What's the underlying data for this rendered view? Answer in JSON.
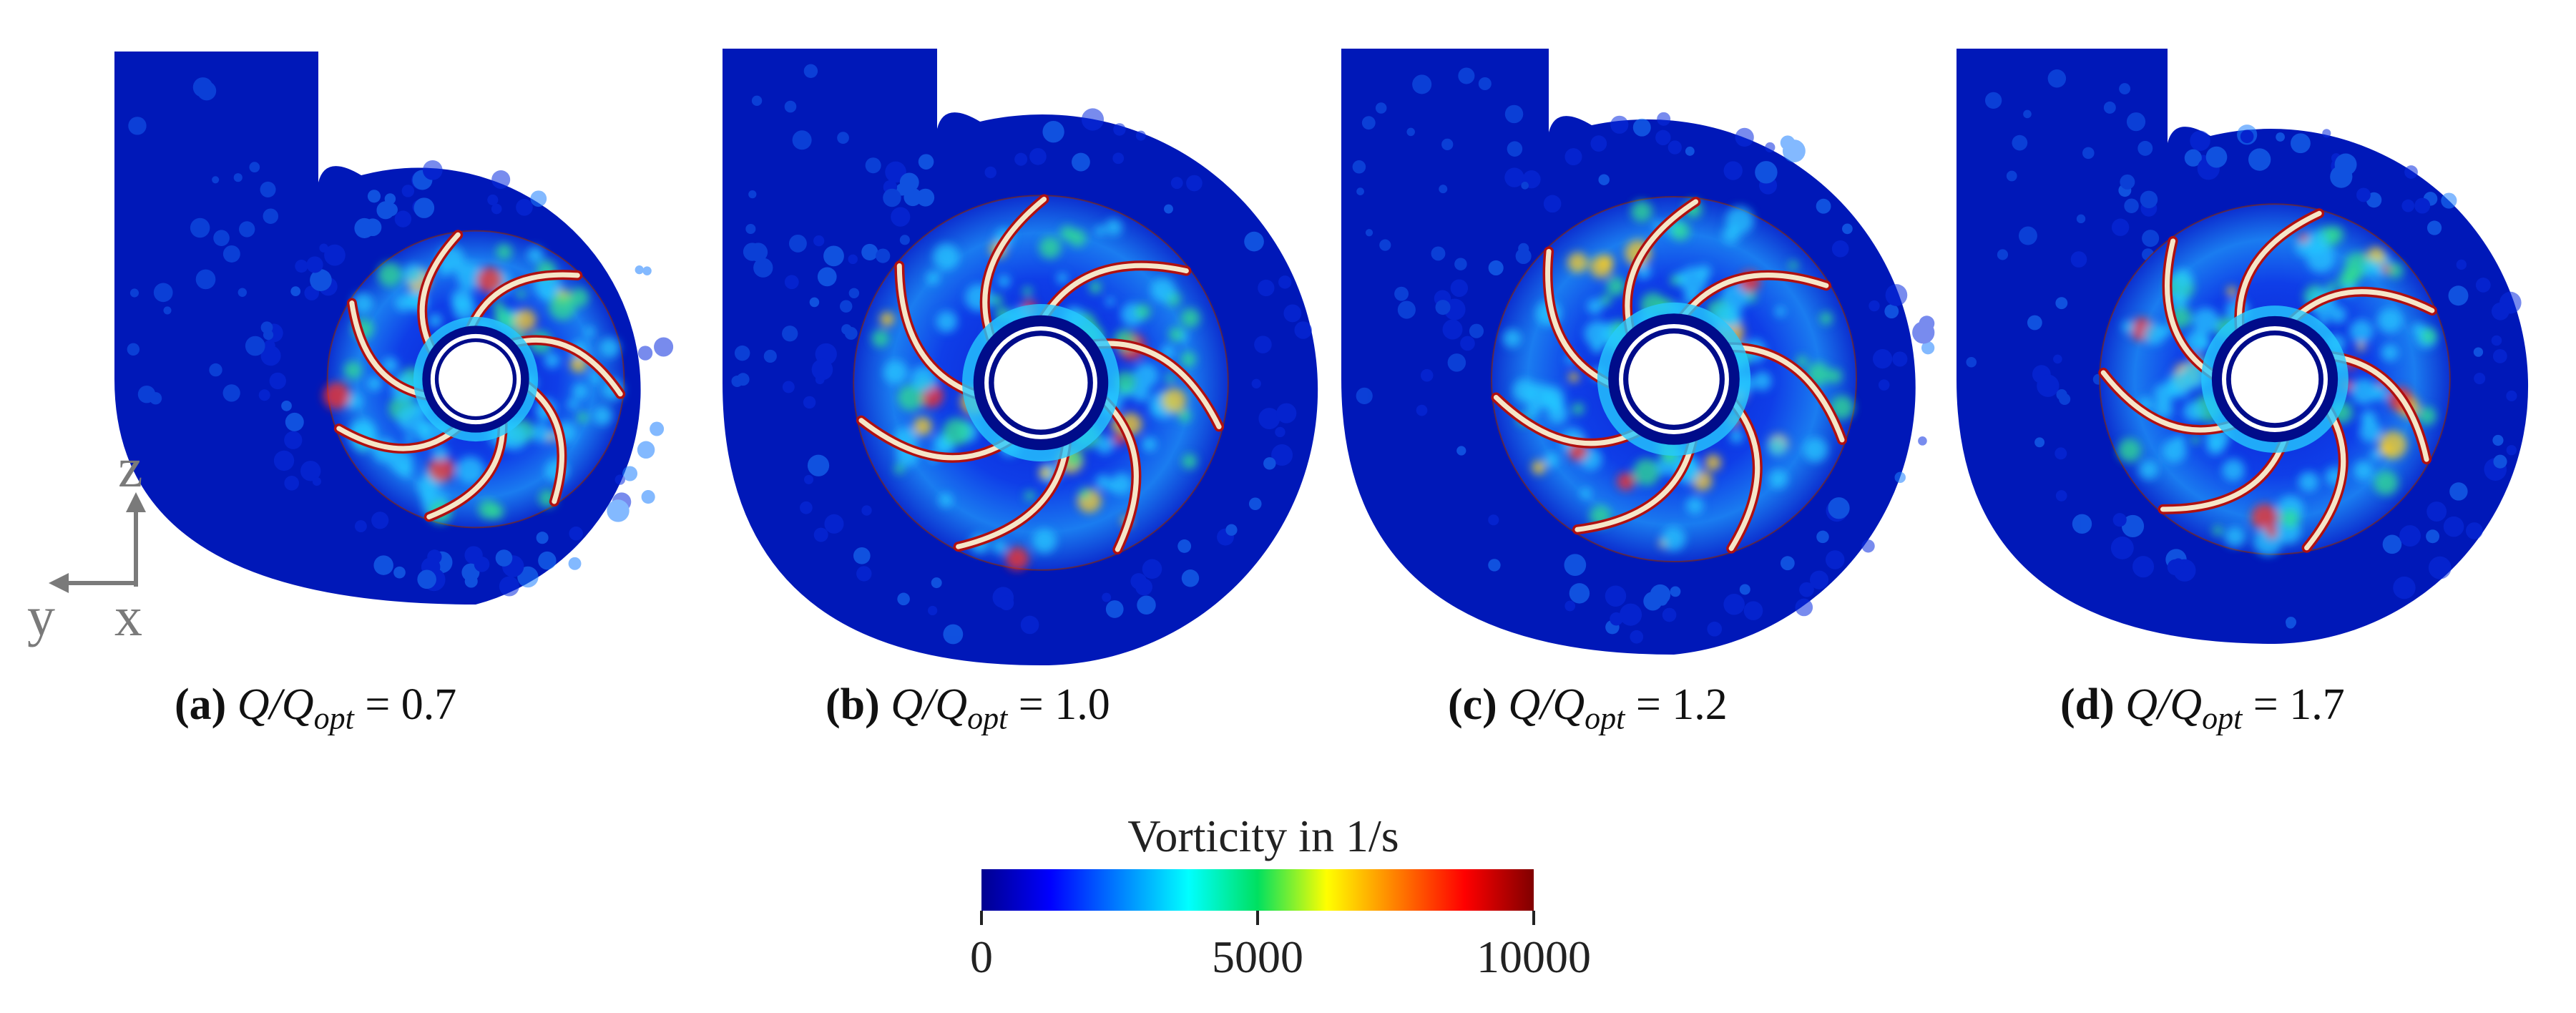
{
  "panels": [
    {
      "label": "(a)",
      "quantity": "Q/Q",
      "sub": "opt",
      "op": "=",
      "value": "0.7",
      "tilt": 0
    },
    {
      "label": "(b)",
      "quantity": "Q/Q",
      "sub": "opt",
      "op": "=",
      "value": "1.0",
      "tilt": 8
    },
    {
      "label": "(c)",
      "quantity": "Q/Q",
      "sub": "opt",
      "op": "=",
      "value": "1.2",
      "tilt": 14
    },
    {
      "label": "(d)",
      "quantity": "Q/Q",
      "sub": "opt",
      "op": "=",
      "value": "1.7",
      "tilt": 22
    }
  ],
  "axes": {
    "z": "z",
    "y": "y",
    "x": "x"
  },
  "colorbar": {
    "title": "Vorticity in 1/s",
    "ticks": [
      "0",
      "5000",
      "10000"
    ],
    "colors": [
      "#00008f",
      "#0000ff",
      "#0080ff",
      "#00ffff",
      "#00e060",
      "#ffff00",
      "#ff8000",
      "#ff0000",
      "#800000"
    ]
  },
  "colors": {
    "field": "#0018b8",
    "deep": "#000c8a",
    "wake": "#26c8ff",
    "blade": "#f5e6c8",
    "blade_edge": "#b01010"
  }
}
